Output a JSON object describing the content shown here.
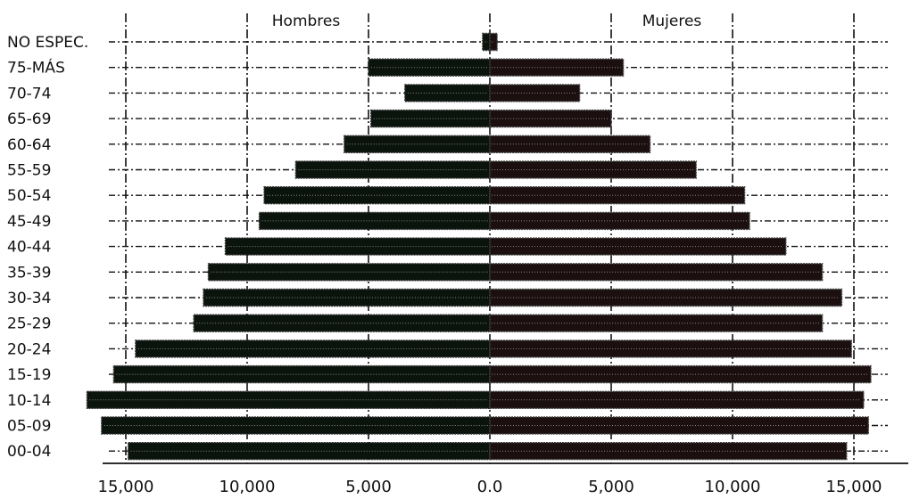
{
  "chart_data": {
    "type": "bar",
    "orientation": "horizontal",
    "title": "",
    "xlabel": "",
    "ylabel": "",
    "xlim": [
      -15800,
      15800
    ],
    "grid": true,
    "legend_position": "top",
    "categories": [
      "00-04",
      "05-09",
      "10-14",
      "15-19",
      "20-24",
      "25-29",
      "30-34",
      "35-39",
      "40-44",
      "45-49",
      "50-54",
      "55-59",
      "60-64",
      "65-69",
      "70-74",
      "75-MÁS",
      "NO ESPEC."
    ],
    "x_tick_labels": [
      "15,000",
      "10,000",
      "5,000",
      "0.0",
      "5,000",
      "10,000",
      "15,000"
    ],
    "x_tick_values": [
      -15000,
      -10000,
      -5000,
      0,
      5000,
      10000,
      15000
    ],
    "series": [
      {
        "name": "Hombres",
        "color": "#0a140c",
        "values": [
          14900,
          16000,
          16600,
          15500,
          14600,
          12200,
          11800,
          11600,
          10900,
          9500,
          9300,
          8000,
          6000,
          4900,
          3500,
          5000,
          300
        ]
      },
      {
        "name": "Mujeres",
        "color": "#1b0f0f",
        "values": [
          14700,
          15600,
          15400,
          15700,
          14900,
          13700,
          14500,
          13700,
          12200,
          10700,
          10500,
          8500,
          6600,
          5000,
          3700,
          5500,
          300
        ]
      }
    ]
  }
}
